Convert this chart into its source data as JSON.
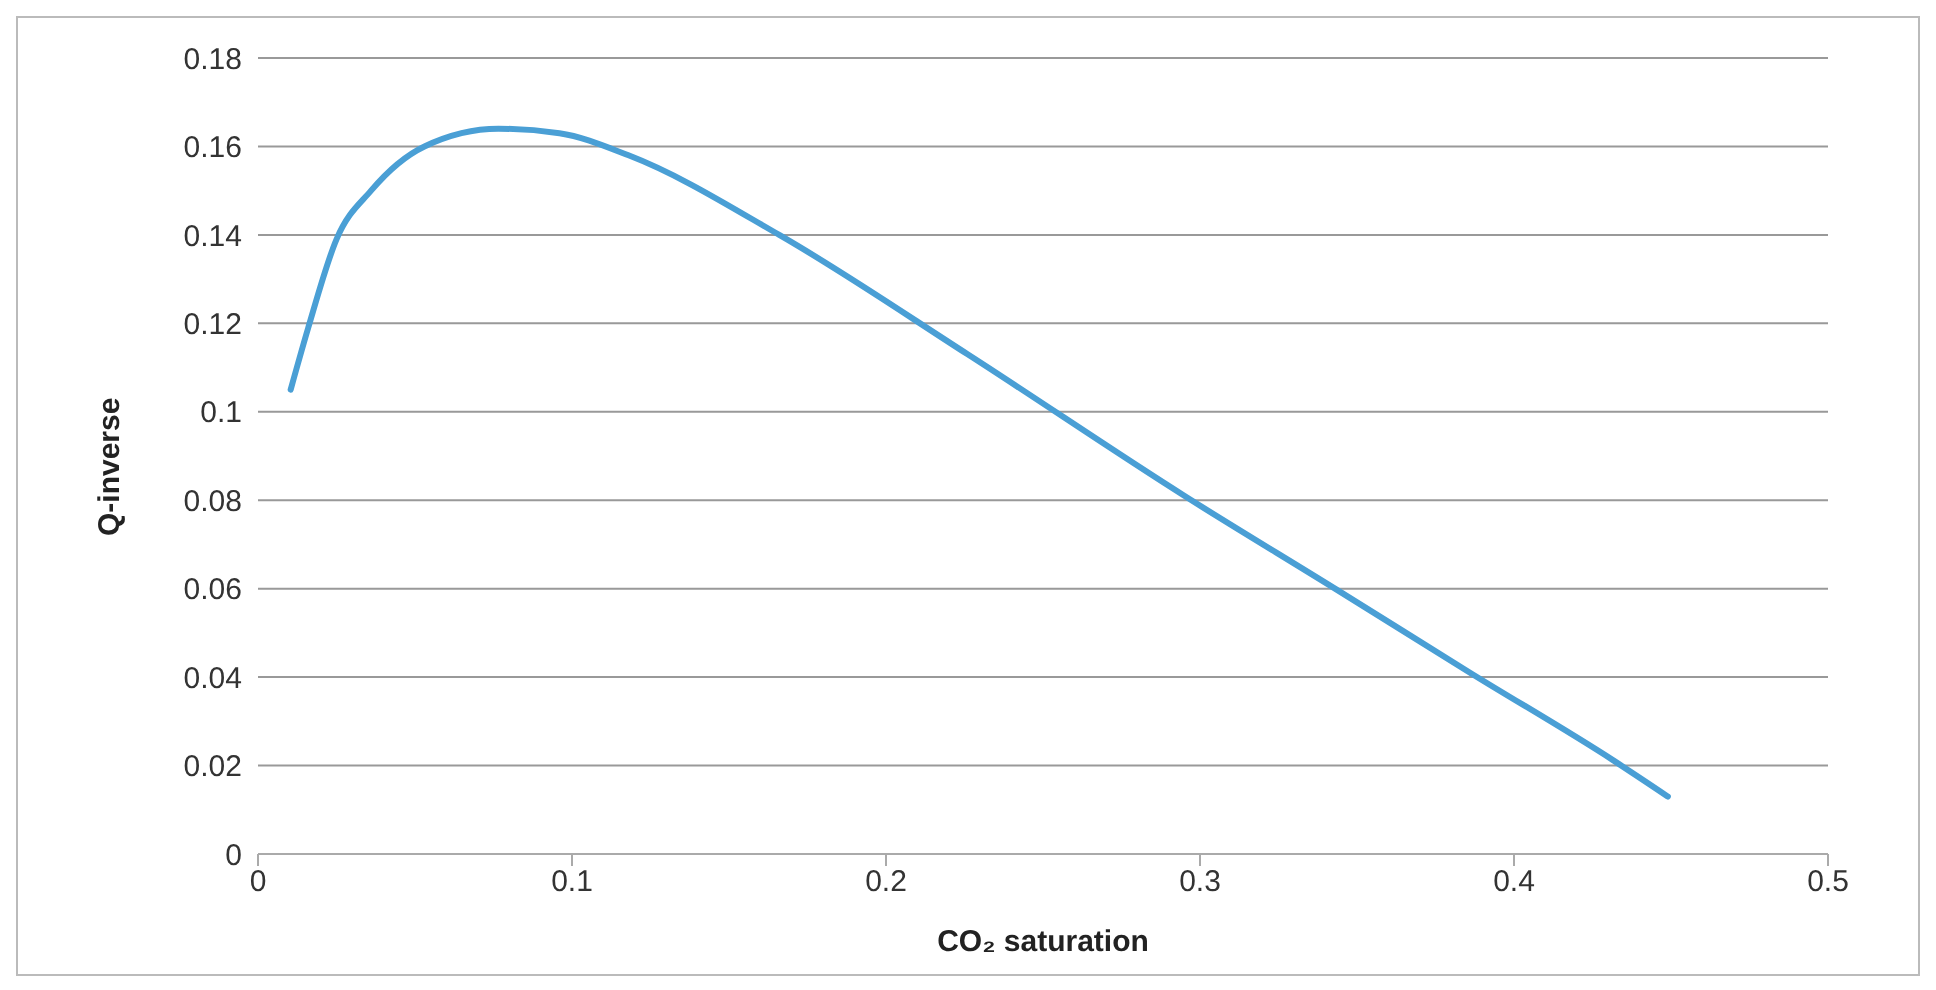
{
  "chart_data": {
    "type": "line",
    "xlabel": "CO₂ saturation",
    "ylabel": "Q-inverse",
    "series": [
      {
        "color": "#4a9fd5",
        "x": [
          0.0104,
          0.016,
          0.025,
          0.036,
          0.053,
          0.0766,
          0.096,
          0.118,
          0.166,
          0.226,
          0.295,
          0.343,
          0.386,
          0.432,
          0.449
        ],
        "values": [
          0.105,
          0.119,
          0.139,
          0.15,
          0.16,
          0.164,
          0.163,
          0.158,
          0.14,
          0.113,
          0.081,
          0.06,
          0.041,
          0.021,
          0.013
        ]
      }
    ],
    "xlim": [
      0,
      0.5
    ],
    "xticks": [
      0,
      0.1,
      0.2,
      0.3,
      0.4,
      0.5
    ],
    "ylim": [
      0,
      0.18
    ],
    "yticks": [
      0,
      0.02,
      0.04,
      0.06,
      0.08,
      0.1,
      0.12,
      0.14,
      0.16,
      0.18
    ],
    "grid": "y",
    "legend": false,
    "marker": "none",
    "line_style": "solid"
  }
}
